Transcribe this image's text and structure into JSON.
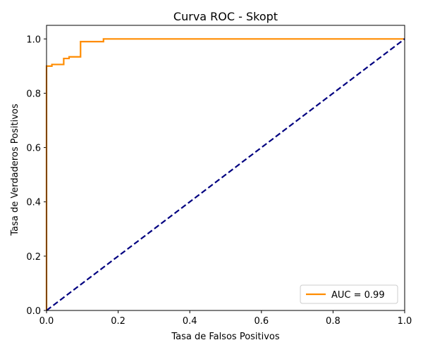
{
  "chart_data": {
    "type": "line",
    "title": "Curva ROC - Skopt",
    "xlabel": "Tasa de Falsos Positivos",
    "ylabel": "Tasa de Verdaderos Positivos",
    "xlim": [
      0.0,
      1.0
    ],
    "ylim": [
      0.0,
      1.05
    ],
    "grid": false,
    "legend_position": "lower-right",
    "x_ticks": [
      "0.0",
      "0.2",
      "0.4",
      "0.6",
      "0.8",
      "1.0"
    ],
    "y_ticks": [
      "0.0",
      "0.2",
      "0.4",
      "0.6",
      "0.8",
      "1.0"
    ],
    "series": [
      {
        "name": "AUC = 0.99",
        "color": "#ff8c00",
        "line_style": "solid",
        "x": [
          0.0,
          0.0,
          0.0,
          0.015,
          0.015,
          0.048,
          0.048,
          0.063,
          0.063,
          0.095,
          0.095,
          0.159,
          0.159,
          1.0
        ],
        "y": [
          0.0,
          0.9,
          0.9,
          0.9,
          0.906,
          0.906,
          0.928,
          0.928,
          0.934,
          0.934,
          0.99,
          0.99,
          1.0,
          1.0
        ]
      },
      {
        "color": "#000080",
        "line_style": "dashed",
        "x": [
          0.0,
          1.0
        ],
        "y": [
          0.0,
          1.0
        ]
      }
    ]
  }
}
